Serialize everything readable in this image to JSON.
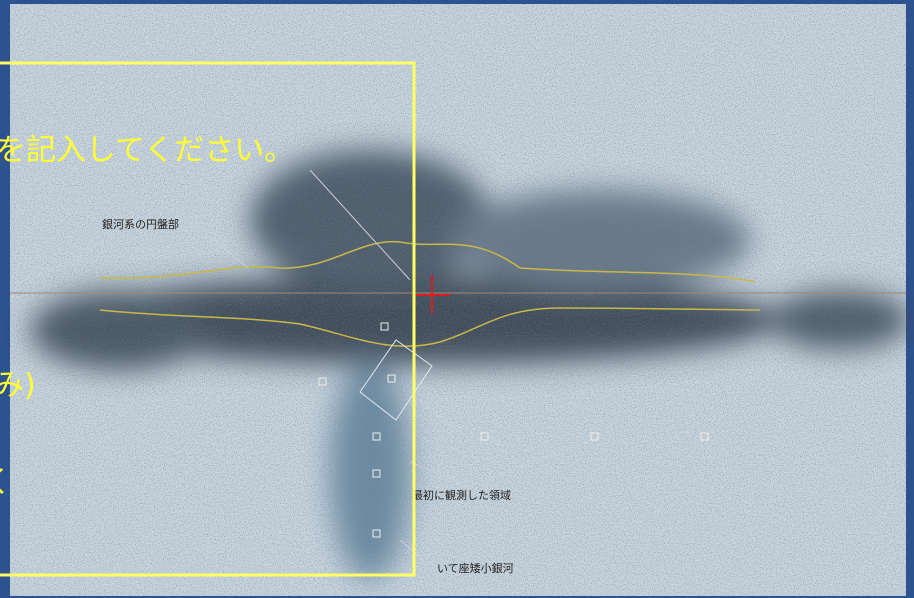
{
  "slide": {
    "text_lines": [
      "を記入してください。",
      "み)",
      "く"
    ]
  },
  "image": {
    "labels": [
      "銀河系の円盤部",
      "最初に観測した領域",
      "いて座矮小銀河"
    ]
  }
}
